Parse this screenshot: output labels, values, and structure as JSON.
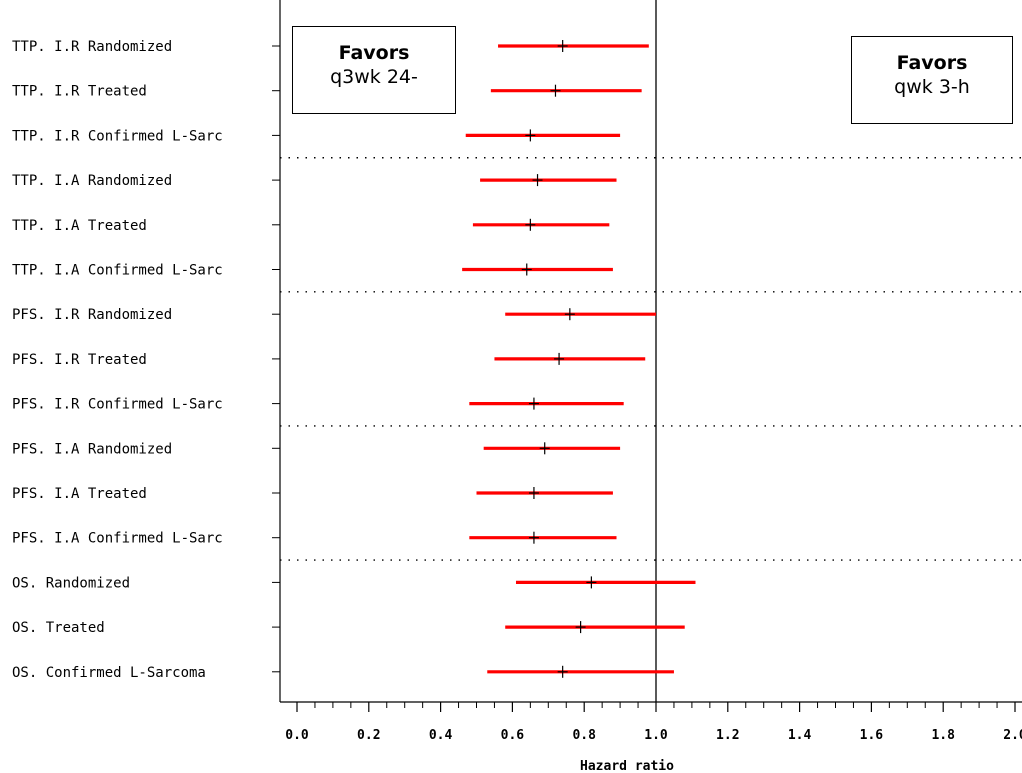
{
  "chart_data": {
    "type": "forest",
    "xlabel": "Hazard ratio",
    "xlim": [
      -0.07,
      2.0
    ],
    "x_ticks": [
      "0.0",
      "0.2",
      "0.4",
      "0.6",
      "0.8",
      "1.0",
      "1.2",
      "1.4",
      "1.6",
      "1.8",
      "2.0"
    ],
    "x_tick_values": [
      0.0,
      0.2,
      0.4,
      0.6,
      0.8,
      1.0,
      1.2,
      1.4,
      1.6,
      1.8,
      2.0
    ],
    "reference_line": 1.0,
    "group_separators_after_rows": [
      3,
      6,
      9,
      12
    ],
    "colors": {
      "ci": "#ff0000",
      "estimate": "#000000",
      "reference": "#000000"
    },
    "rows": [
      {
        "label": "TTP. I.R Randomized",
        "hr": 0.74,
        "lo": 0.56,
        "hi": 0.98
      },
      {
        "label": "TTP. I.R Treated",
        "hr": 0.72,
        "lo": 0.54,
        "hi": 0.96
      },
      {
        "label": "TTP. I.R Confirmed L-Sarc",
        "hr": 0.65,
        "lo": 0.47,
        "hi": 0.9
      },
      {
        "label": "TTP. I.A Randomized",
        "hr": 0.67,
        "lo": 0.51,
        "hi": 0.89
      },
      {
        "label": "TTP. I.A Treated",
        "hr": 0.65,
        "lo": 0.49,
        "hi": 0.87
      },
      {
        "label": "TTP. I.A Confirmed L-Sarc",
        "hr": 0.64,
        "lo": 0.46,
        "hi": 0.88
      },
      {
        "label": "PFS. I.R Randomized",
        "hr": 0.76,
        "lo": 0.58,
        "hi": 1.0
      },
      {
        "label": "PFS. I.R Treated",
        "hr": 0.73,
        "lo": 0.55,
        "hi": 0.97
      },
      {
        "label": "PFS. I.R Confirmed L-Sarc",
        "hr": 0.66,
        "lo": 0.48,
        "hi": 0.91
      },
      {
        "label": "PFS. I.A Randomized",
        "hr": 0.69,
        "lo": 0.52,
        "hi": 0.9
      },
      {
        "label": "PFS. I.A Treated",
        "hr": 0.66,
        "lo": 0.5,
        "hi": 0.88
      },
      {
        "label": "PFS. I.A Confirmed L-Sarc",
        "hr": 0.66,
        "lo": 0.48,
        "hi": 0.89
      },
      {
        "label": "OS. Randomized",
        "hr": 0.82,
        "lo": 0.61,
        "hi": 1.11
      },
      {
        "label": "OS. Treated",
        "hr": 0.79,
        "lo": 0.58,
        "hi": 1.08
      },
      {
        "label": "OS. Confirmed L-Sarcoma",
        "hr": 0.74,
        "lo": 0.53,
        "hi": 1.05
      }
    ],
    "annotations": {
      "left": {
        "line1": "Favors",
        "line2": "q3wk 24-"
      },
      "right": {
        "line1": "Favors",
        "line2": "qwk 3-h"
      }
    }
  }
}
